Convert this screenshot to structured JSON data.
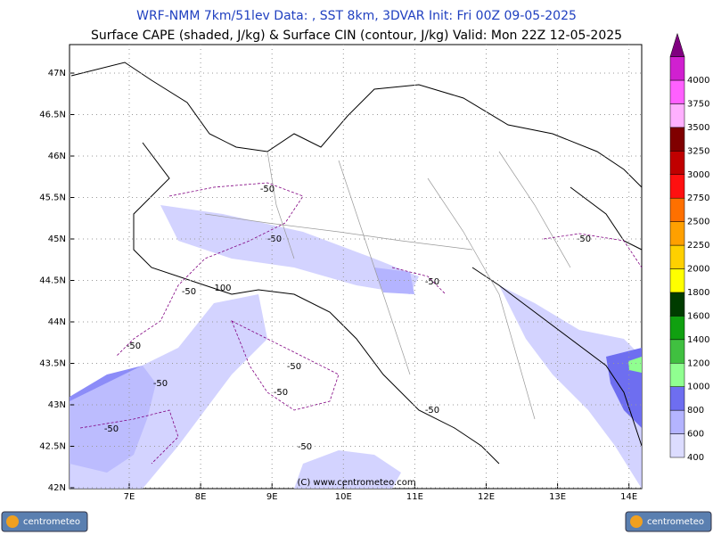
{
  "header": {
    "line1": "WRF-NMM 7km/51lev   Data: , SST 8km, 3DVAR   Init: Fri 00Z 09-05-2025",
    "line2": "Surface CAPE (shaded, J/kg) & Surface CIN (contour, J/kg)  Valid: Mon 22Z 12-05-2025"
  },
  "map": {
    "lat_labels": [
      "47N",
      "46.5N",
      "46N",
      "45.5N",
      "45N",
      "44.5N",
      "44N",
      "43.5N",
      "43N",
      "42.5N",
      "42N"
    ],
    "lon_labels": [
      "7E",
      "8E",
      "9E",
      "10E",
      "11E",
      "12E",
      "13E",
      "14E"
    ],
    "contour_labels": [
      -50,
      -50,
      -50,
      100,
      -50,
      -50,
      -50,
      -50,
      -50,
      -50,
      -50,
      -50,
      -50
    ],
    "copyright": "(C) www.centrometeo.com"
  },
  "colorbar": {
    "levels": [
      400,
      600,
      800,
      1000,
      1200,
      1400,
      1600,
      1800,
      2000,
      2250,
      2500,
      2750,
      3000,
      3250,
      3500,
      3750,
      4000
    ],
    "colors": [
      "#dcdcff",
      "#b4b4ff",
      "#6e6ef0",
      "#90ff90",
      "#40c040",
      "#10a010",
      "#003c00",
      "#ffff00",
      "#ffd000",
      "#ffa000",
      "#ff7000",
      "#ff1010",
      "#c00000",
      "#800000",
      "#ffb0ff",
      "#ff60ff",
      "#d020d0",
      "#800080"
    ]
  },
  "logos": [
    "centrometeo",
    "centrometeo"
  ]
}
